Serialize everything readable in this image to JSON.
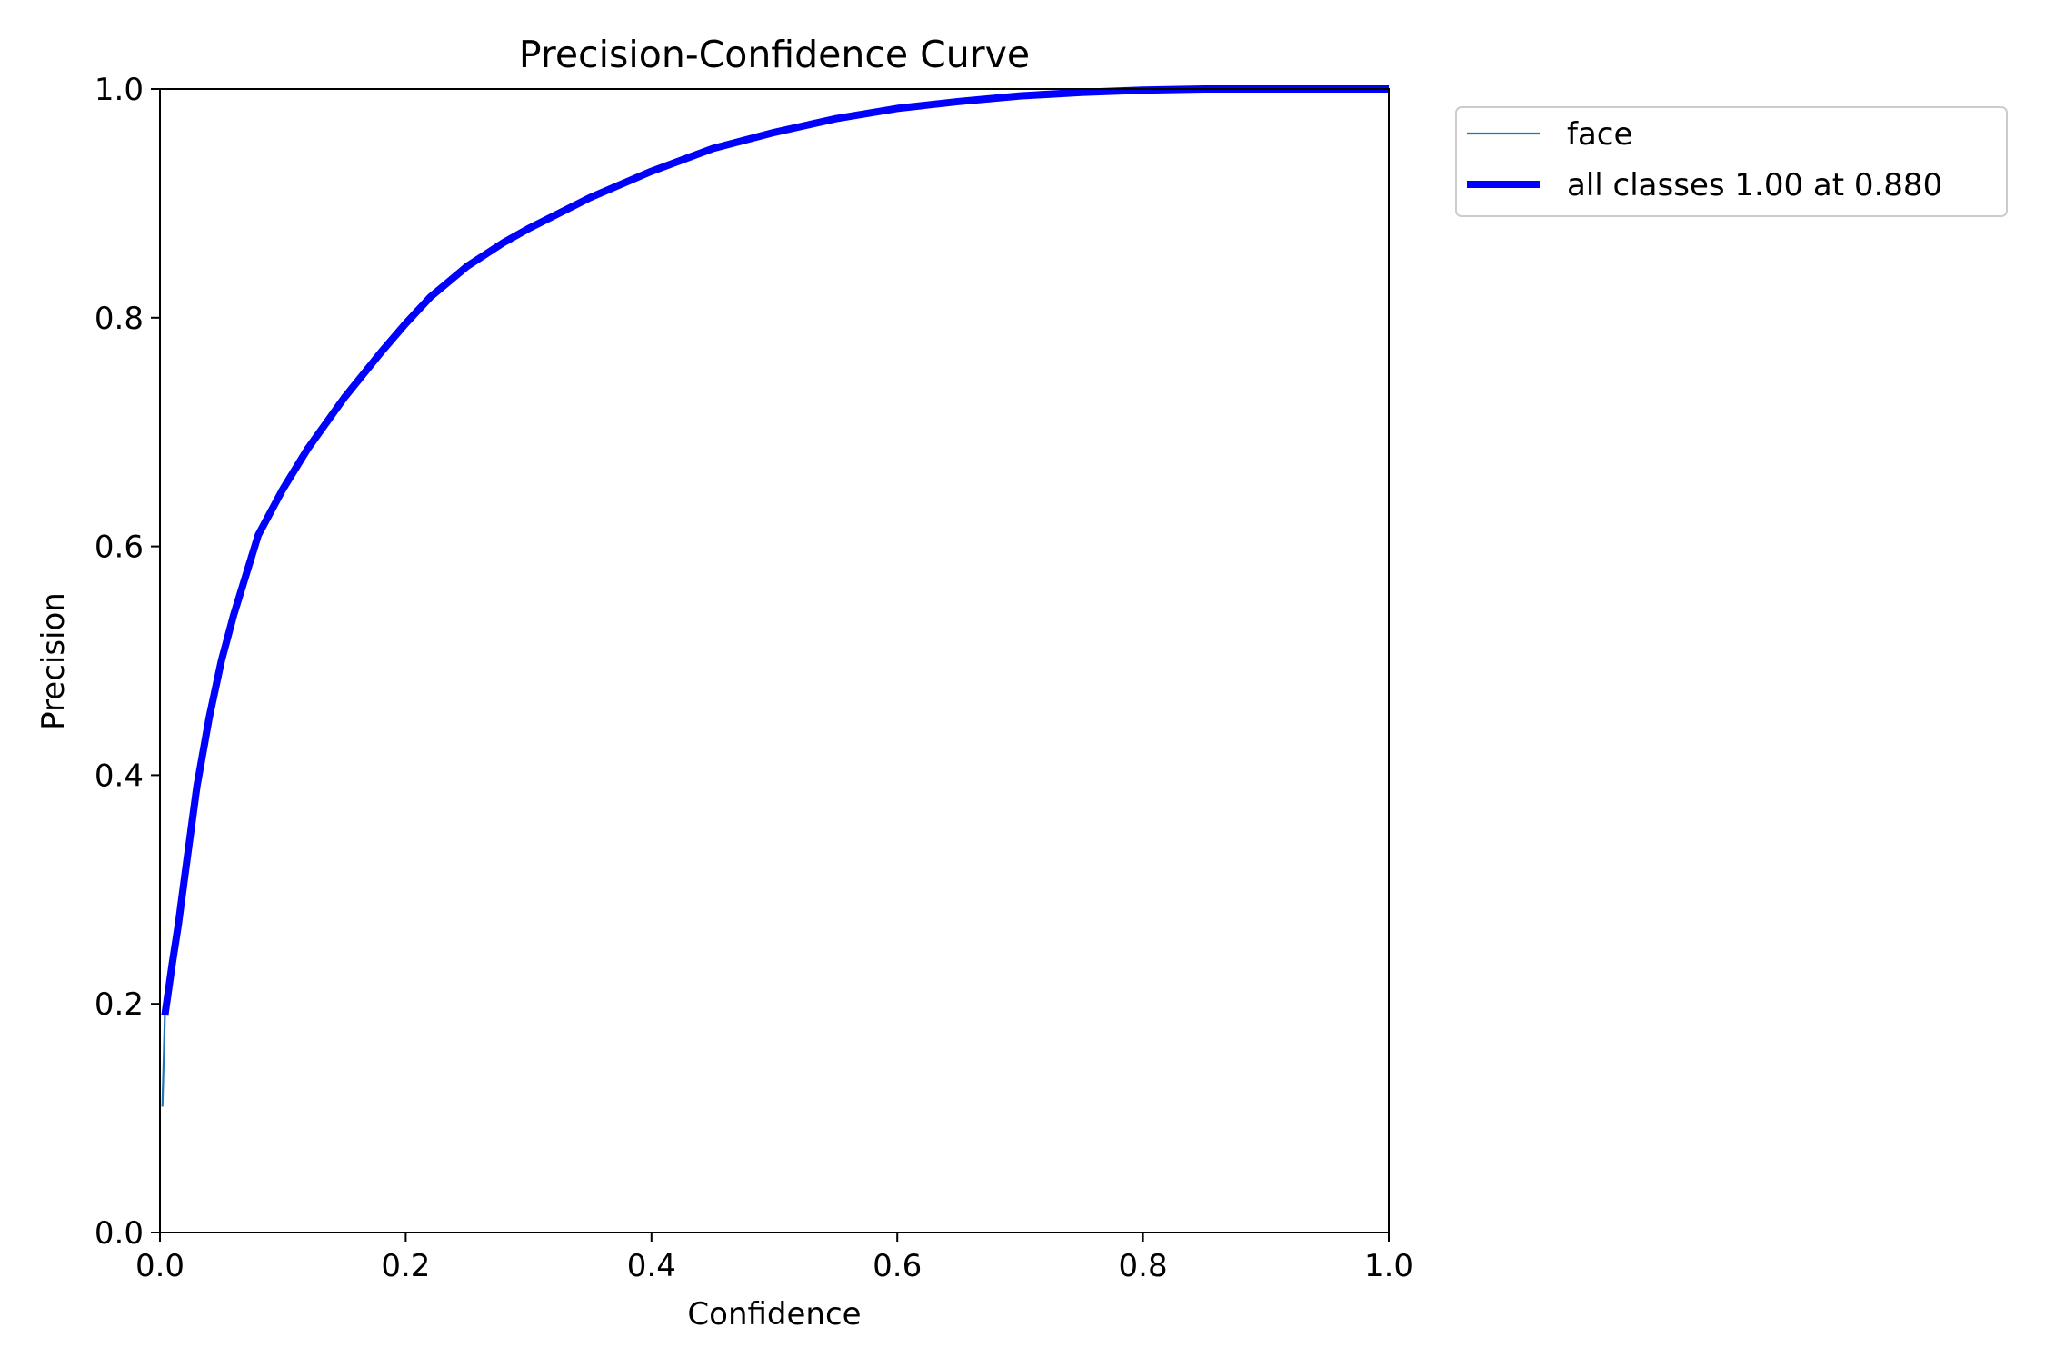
{
  "chart_data": {
    "type": "line",
    "title": "Precision-Confidence Curve",
    "xlabel": "Confidence",
    "ylabel": "Precision",
    "xlim": [
      0,
      1
    ],
    "ylim": [
      0,
      1
    ],
    "xticks": [
      "0.0",
      "0.2",
      "0.4",
      "0.6",
      "0.8",
      "1.0"
    ],
    "yticks": [
      "0.0",
      "0.2",
      "0.4",
      "0.6",
      "0.8",
      "1.0"
    ],
    "grid": false,
    "legend_position": "outside-top-right",
    "series": [
      {
        "name": "face",
        "color": "#1f77b4",
        "x": [
          0.002,
          0.004,
          0.006,
          0.01,
          0.015,
          0.02,
          0.03,
          0.04,
          0.05,
          0.06,
          0.08,
          0.1,
          0.12,
          0.15,
          0.18,
          0.2,
          0.22,
          0.25,
          0.28,
          0.3,
          0.35,
          0.4,
          0.45,
          0.5,
          0.55,
          0.6,
          0.65,
          0.7,
          0.75,
          0.8,
          0.85,
          0.88,
          0.9,
          0.95,
          1.0
        ],
        "y": [
          0.11,
          0.19,
          0.205,
          0.235,
          0.27,
          0.31,
          0.39,
          0.45,
          0.5,
          0.54,
          0.61,
          0.65,
          0.685,
          0.73,
          0.77,
          0.795,
          0.818,
          0.845,
          0.866,
          0.878,
          0.905,
          0.928,
          0.948,
          0.962,
          0.974,
          0.983,
          0.989,
          0.994,
          0.997,
          0.999,
          1.0,
          1.0,
          1.0,
          1.0,
          1.0
        ]
      },
      {
        "name": "all classes 1.00 at 0.880",
        "color": "#0000ff",
        "x": [
          0.004,
          0.006,
          0.01,
          0.015,
          0.02,
          0.03,
          0.04,
          0.05,
          0.06,
          0.08,
          0.1,
          0.12,
          0.15,
          0.18,
          0.2,
          0.22,
          0.25,
          0.28,
          0.3,
          0.35,
          0.4,
          0.45,
          0.5,
          0.55,
          0.6,
          0.65,
          0.7,
          0.75,
          0.8,
          0.85,
          0.88,
          0.9,
          0.95,
          1.0
        ],
        "y": [
          0.19,
          0.205,
          0.235,
          0.27,
          0.31,
          0.39,
          0.45,
          0.5,
          0.54,
          0.61,
          0.65,
          0.685,
          0.73,
          0.77,
          0.795,
          0.818,
          0.845,
          0.866,
          0.878,
          0.905,
          0.928,
          0.948,
          0.962,
          0.974,
          0.983,
          0.989,
          0.994,
          0.997,
          0.999,
          1.0,
          1.0,
          1.0,
          1.0,
          1.0
        ]
      }
    ]
  }
}
